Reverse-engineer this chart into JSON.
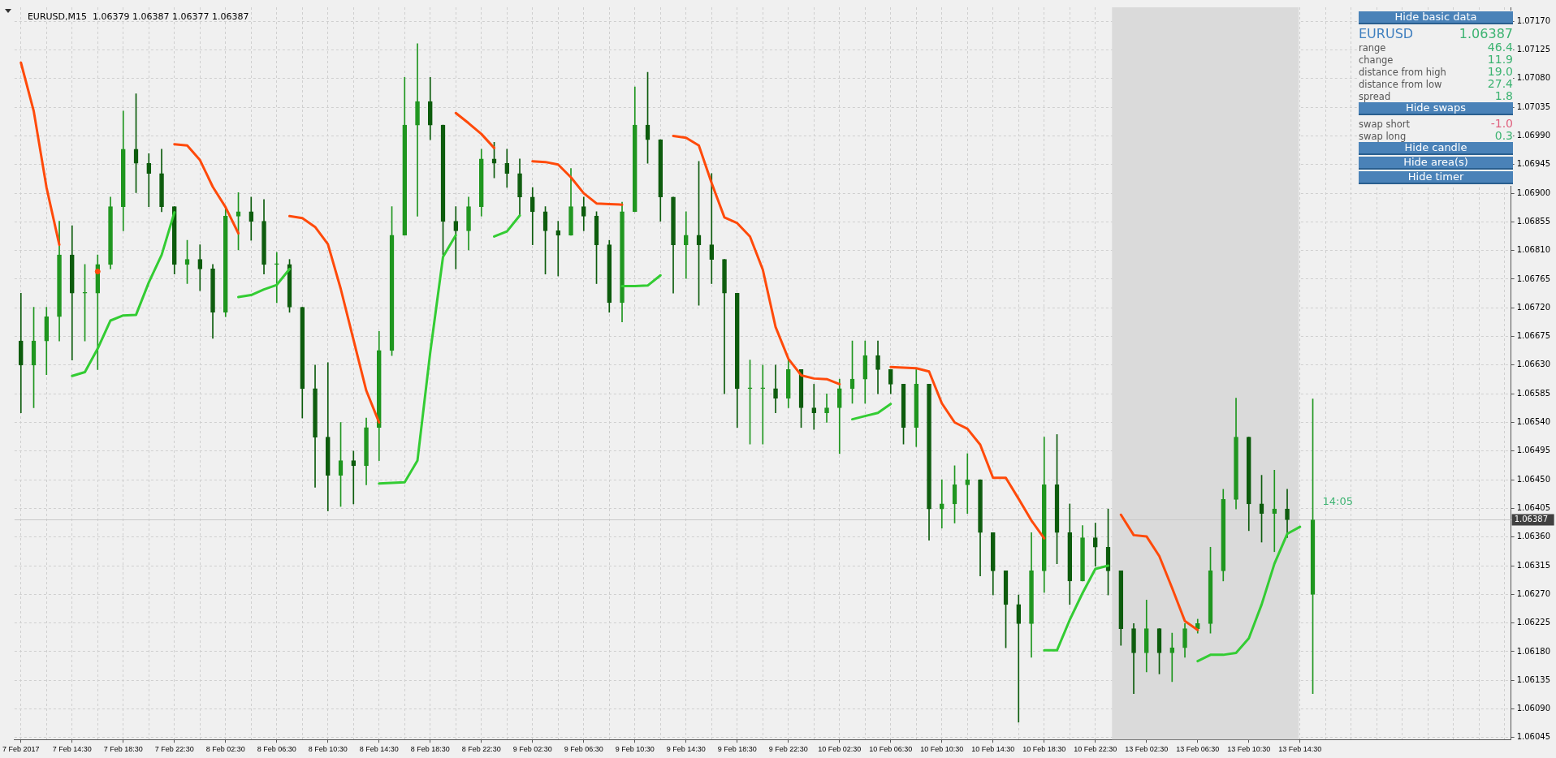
{
  "chart_data": {
    "type": "candlestick",
    "title": "EURUSD,M15  1.06379 1.06387 1.06377 1.06387",
    "colors": [
      "#0d5c0d",
      "#1f961f",
      "#1f961f",
      "#1f961f",
      "#0d5c0d",
      "#1f961f",
      "#1f961f",
      "#1f961f",
      "#1f961f",
      "#0d5c0d",
      "#0d5c0d",
      "#0d5c0d",
      "#0d5c0d",
      "#1f961f",
      "#0d5c0d",
      "#0d5c0d",
      "#1f961f",
      "#1f961f",
      "#0d5c0d",
      "#0d5c0d",
      "#1f961f",
      "#0d5c0d",
      "#0d5c0d",
      "#0d5c0d",
      "#0d5c0d",
      "#1f961f",
      "#0d5c0d",
      "#1f961f",
      "#1f961f",
      "#1f961f",
      "#1f961f",
      "#1f961f",
      "#0d5c0d",
      "#0d5c0d",
      "#0d5c0d",
      "#1f961f",
      "#1f961f",
      "#0d5c0d",
      "#0d5c0d",
      "#0d5c0d",
      "#0d5c0d",
      "#0d5c0d",
      "#0d5c0d",
      "#1f961f",
      "#0d5c0d",
      "#0d5c0d",
      "#0d5c0d",
      "#1f961f",
      "#1f961f",
      "#0d5c0d",
      "#0d5c0d",
      "#0d5c0d",
      "#1f961f",
      "#0d5c0d",
      "#0d5c0d",
      "#0d5c0d",
      "#0d5c0d",
      "#1f961f",
      "#1f961f",
      "#0d5c0d",
      "#1f961f",
      "#0d5c0d",
      "#0d5c0d",
      "#1f961f",
      "#1f961f",
      "#1f961f",
      "#1f961f",
      "#0d5c0d",
      "#0d5c0d",
      "#0d5c0d",
      "#1f961f",
      "#0d5c0d",
      "#1f961f",
      "#1f961f",
      "#1f961f",
      "#0d5c0d",
      "#0d5c0d",
      "#0d5c0d",
      "#0d5c0d",
      "#1f961f",
      "#1f961f",
      "#0d5c0d",
      "#0d5c0d",
      "#1f961f",
      "#0d5c0d",
      "#0d5c0d",
      "#0d5c0d",
      "#0d5c0d",
      "#1f961f",
      "#0d5c0d",
      "#1f961f",
      "#1f961f",
      "#1f961f",
      "#1f961f",
      "#1f961f",
      "#1f961f",
      "#0d5c0d",
      "#0d5c0d",
      "#1f961f",
      "#0d5c0d",
      null,
      "#1f961f",
      null,
      null,
      null,
      null,
      null,
      null,
      null,
      null,
      null,
      null,
      null,
      null,
      null,
      null,
      null
    ],
    "categories": [
      "7 Feb 2017",
      null,
      null,
      null,
      "7 Feb 14:30",
      null,
      null,
      null,
      "7 Feb 18:30",
      null,
      null,
      null,
      "7 Feb 22:30",
      null,
      null,
      null,
      "8 Feb 02:30",
      null,
      null,
      null,
      "8 Feb 06:30",
      null,
      null,
      null,
      "8 Feb 10:30",
      null,
      null,
      null,
      "8 Feb 14:30",
      null,
      null,
      null,
      "8 Feb 18:30",
      null,
      null,
      null,
      "8 Feb 22:30",
      null,
      null,
      null,
      "9 Feb 02:30",
      null,
      null,
      null,
      "9 Feb 06:30",
      null,
      null,
      null,
      "9 Feb 10:30",
      null,
      null,
      null,
      "9 Feb 14:30",
      null,
      null,
      null,
      "9 Feb 18:30",
      null,
      null,
      null,
      "9 Feb 22:30",
      null,
      null,
      null,
      "10 Feb 02:30",
      null,
      null,
      null,
      "10 Feb 06:30",
      null,
      null,
      null,
      "10 Feb 10:30",
      null,
      null,
      null,
      "10 Feb 14:30",
      null,
      null,
      null,
      "10 Feb 18:30",
      null,
      null,
      null,
      "10 Feb 22:30",
      null,
      null,
      null,
      "13 Feb 02:30",
      null,
      null,
      null,
      "13 Feb 06:30",
      null,
      null,
      null,
      "13 Feb 10:30",
      null,
      null,
      null,
      "13 Feb 14:30",
      null,
      null,
      null,
      null,
      null,
      null,
      null,
      null,
      null,
      null,
      null,
      null,
      null,
      null,
      null,
      null
    ],
    "ohlc": [
      [
        1.06668,
        1.06743,
        1.06555,
        1.0663
      ],
      [
        1.0663,
        1.06721,
        1.06563,
        1.06668
      ],
      [
        1.06668,
        1.06721,
        1.06615,
        1.06706
      ],
      [
        1.06706,
        1.06856,
        1.06668,
        1.06803
      ],
      [
        1.06803,
        1.06849,
        1.06638,
        1.06743
      ],
      [
        1.06743,
        1.06788,
        1.06668,
        1.06743
      ],
      [
        1.06743,
        1.06803,
        1.06623,
        1.06788
      ],
      [
        1.06788,
        1.06894,
        1.06781,
        1.06879
      ],
      [
        1.06879,
        1.07029,
        1.06841,
        1.06969
      ],
      [
        1.06969,
        1.07056,
        1.06901,
        1.06947
      ],
      [
        1.06947,
        1.06962,
        1.06879,
        1.06931
      ],
      [
        1.06931,
        1.06969,
        1.06871,
        1.06879
      ],
      [
        1.06879,
        1.06879,
        1.06773,
        1.06788
      ],
      [
        1.06788,
        1.06826,
        1.06758,
        1.06796
      ],
      [
        1.06796,
        1.06819,
        1.06747,
        1.06781
      ],
      [
        1.06781,
        1.06788,
        1.06672,
        1.06713
      ],
      [
        1.06713,
        1.06875,
        1.06706,
        1.06864
      ],
      [
        1.06864,
        1.06901,
        1.06811,
        1.06871
      ],
      [
        1.06871,
        1.06894,
        1.06826,
        1.06856
      ],
      [
        1.06856,
        1.0689,
        1.06773,
        1.06788
      ],
      [
        1.06788,
        1.06807,
        1.06728,
        1.06788
      ],
      [
        1.06788,
        1.06796,
        1.06713,
        1.06721
      ],
      [
        1.06721,
        1.06721,
        1.06547,
        1.06593
      ],
      [
        1.06593,
        1.0663,
        1.06438,
        1.06517
      ],
      [
        1.06517,
        1.06634,
        1.06401,
        1.06457
      ],
      [
        1.06457,
        1.0654,
        1.06408,
        1.0648
      ],
      [
        1.0648,
        1.06495,
        1.06412,
        1.06472
      ],
      [
        1.06472,
        1.06547,
        1.06442,
        1.06532
      ],
      [
        1.06532,
        1.06683,
        1.0648,
        1.06653
      ],
      [
        1.06653,
        1.06879,
        1.06645,
        1.06834
      ],
      [
        1.06834,
        1.07082,
        1.06834,
        1.07007
      ],
      [
        1.07007,
        1.07135,
        1.06864,
        1.07044
      ],
      [
        1.07044,
        1.07082,
        1.06984,
        1.07007
      ],
      [
        1.07007,
        1.07007,
        1.06803,
        1.06856
      ],
      [
        1.06856,
        1.06879,
        1.06781,
        1.06841
      ],
      [
        1.06841,
        1.06894,
        1.06811,
        1.06879
      ],
      [
        1.06879,
        1.06969,
        1.06864,
        1.06954
      ],
      [
        1.06954,
        1.0698,
        1.06924,
        1.06947
      ],
      [
        1.06947,
        1.06969,
        1.06909,
        1.06931
      ],
      [
        1.06931,
        1.06954,
        1.06864,
        1.06894
      ],
      [
        1.06894,
        1.06909,
        1.06819,
        1.06871
      ],
      [
        1.06871,
        1.06879,
        1.06773,
        1.06841
      ],
      [
        1.06841,
        1.06856,
        1.0677,
        1.06834
      ],
      [
        1.06834,
        1.06939,
        1.06834,
        1.06879
      ],
      [
        1.06879,
        1.06894,
        1.06841,
        1.06864
      ],
      [
        1.06864,
        1.06871,
        1.06758,
        1.06819
      ],
      [
        1.06819,
        1.06826,
        1.06713,
        1.06728
      ],
      [
        1.06728,
        1.06886,
        1.06698,
        1.06871
      ],
      [
        1.06871,
        1.07067,
        1.06871,
        1.07007
      ],
      [
        1.07007,
        1.0709,
        1.06947,
        1.06984
      ],
      [
        1.06984,
        1.06984,
        1.06856,
        1.06894
      ],
      [
        1.06894,
        1.06894,
        1.06743,
        1.06819
      ],
      [
        1.06819,
        1.06871,
        1.06766,
        1.06834
      ],
      [
        1.06834,
        1.0695,
        1.06724,
        1.06819
      ],
      [
        1.06819,
        1.06931,
        1.06758,
        1.06796
      ],
      [
        1.06796,
        1.06796,
        1.06585,
        1.06743
      ],
      [
        1.06743,
        1.06743,
        1.06532,
        1.06593
      ],
      [
        1.06593,
        1.06638,
        1.06506,
        1.06593
      ],
      [
        1.06593,
        1.0663,
        1.06506,
        1.06593
      ],
      [
        1.06593,
        1.0663,
        1.06555,
        1.06578
      ],
      [
        1.06578,
        1.06638,
        1.06563,
        1.06623
      ],
      [
        1.06623,
        1.06623,
        1.06532,
        1.06563
      ],
      [
        1.06563,
        1.066,
        1.06529,
        1.06555
      ],
      [
        1.06555,
        1.06585,
        1.0654,
        1.06563
      ],
      [
        1.06563,
        1.06608,
        1.06491,
        1.06593
      ],
      [
        1.06593,
        1.06668,
        1.0657,
        1.06608
      ],
      [
        1.06608,
        1.06668,
        1.0657,
        1.06645
      ],
      [
        1.06645,
        1.06668,
        1.06585,
        1.06623
      ],
      [
        1.06623,
        1.06623,
        1.06585,
        1.066
      ],
      [
        1.066,
        1.066,
        1.06506,
        1.06532
      ],
      [
        1.06532,
        1.06623,
        1.06502,
        1.066
      ],
      [
        1.066,
        1.066,
        1.06355,
        1.06404
      ],
      [
        1.06404,
        1.0645,
        1.06374,
        1.06412
      ],
      [
        1.06412,
        1.06472,
        1.06382,
        1.06442
      ],
      [
        1.06442,
        1.06491,
        1.06397,
        1.0645
      ],
      [
        1.0645,
        1.0645,
        1.06299,
        1.06367
      ],
      [
        1.06367,
        1.06367,
        1.06269,
        1.06307
      ],
      [
        1.06307,
        1.06307,
        1.06186,
        1.06254
      ],
      [
        1.06254,
        1.06269,
        1.06069,
        1.06224
      ],
      [
        1.06224,
        1.06367,
        1.06171,
        1.06307
      ],
      [
        1.06307,
        1.06517,
        1.06273,
        1.06442
      ],
      [
        1.06442,
        1.06521,
        1.06318,
        1.06367
      ],
      [
        1.06367,
        1.06412,
        1.06254,
        1.06291
      ],
      [
        1.06291,
        1.06378,
        1.06291,
        1.06359
      ],
      [
        1.06359,
        1.06382,
        1.06314,
        1.06344
      ],
      [
        1.06344,
        1.06404,
        1.06269,
        1.06307
      ],
      [
        1.06307,
        1.06307,
        1.0619,
        1.06216
      ],
      [
        1.06216,
        1.06224,
        1.06114,
        1.06178
      ],
      [
        1.06178,
        1.06261,
        1.06148,
        1.06216
      ],
      [
        1.06216,
        1.06216,
        1.06145,
        1.06178
      ],
      [
        1.06178,
        1.06209,
        1.06133,
        1.06186
      ],
      [
        1.06186,
        1.06224,
        1.06171,
        1.06216
      ],
      [
        1.06216,
        1.06231,
        1.06209,
        1.06224
      ],
      [
        1.06224,
        1.06344,
        1.06209,
        1.06307
      ],
      [
        1.06307,
        1.06435,
        1.06291,
        1.06419
      ],
      [
        1.06419,
        1.06578,
        1.06404,
        1.06517
      ],
      [
        1.06517,
        1.06517,
        1.0637,
        1.06412
      ],
      [
        1.06412,
        1.06457,
        1.06352,
        1.06397
      ],
      [
        1.06397,
        1.06465,
        1.06337,
        1.06404
      ],
      [
        1.06404,
        1.06435,
        1.06359,
        1.06387
      ],
      null,
      [
        1.0627,
        1.06577,
        1.06114,
        1.06387
      ],
      null,
      null,
      null,
      null,
      null,
      null,
      null,
      null,
      null,
      null,
      null,
      null,
      null,
      null,
      null
    ],
    "series": [
      {
        "type": "line",
        "color": "#ff4a0a",
        "values": [
          1.07105,
          1.07029,
          1.06909,
          1.06819,
          null,
          null,
          1.06777,
          null,
          null,
          null,
          null,
          null,
          1.06977,
          1.06975,
          1.06952,
          1.0691,
          1.06878,
          1.06837,
          null,
          null,
          null,
          1.06864,
          1.06861,
          1.06847,
          1.0682,
          1.0675,
          1.0667,
          1.0659,
          1.0654,
          null,
          null,
          null,
          null,
          null,
          1.07026,
          1.0701,
          1.06993,
          1.06971,
          null,
          null,
          1.0695,
          1.06949,
          1.06945,
          1.06925,
          1.069,
          1.06884,
          1.06883,
          1.06882,
          null,
          null,
          null,
          1.0699,
          1.06987,
          1.06975,
          1.06916,
          1.06862,
          1.06853,
          1.06832,
          1.0678,
          1.0669,
          1.0664,
          1.06614,
          1.06609,
          1.06608,
          1.066,
          null,
          null,
          null,
          1.06627,
          1.06626,
          1.06625,
          1.0662,
          1.0657,
          1.0654,
          1.0653,
          1.06505,
          1.06453,
          1.06453,
          1.0642,
          1.06386,
          1.06358,
          null,
          null,
          null,
          null,
          null,
          1.06395,
          1.06363,
          1.06361,
          1.0633,
          1.0628,
          1.06228,
          1.06214,
          null,
          null,
          null,
          null,
          null,
          null,
          null,
          null,
          null,
          null,
          null,
          null,
          null,
          null,
          null,
          null,
          null,
          null,
          null,
          null,
          null,
          null,
          null,
          null
        ]
      },
      {
        "type": "line",
        "color": "#33cc33",
        "values": [
          null,
          null,
          null,
          null,
          1.06613,
          1.06619,
          1.06656,
          1.067,
          1.06708,
          1.06709,
          1.0676,
          1.06803,
          1.0687,
          null,
          null,
          null,
          null,
          1.06737,
          1.0674,
          1.06749,
          1.06756,
          1.06781,
          null,
          null,
          null,
          null,
          null,
          null,
          1.06444,
          1.06445,
          1.06446,
          1.0648,
          1.0665,
          1.068,
          1.06834,
          null,
          null,
          1.06832,
          1.0684,
          1.06865,
          null,
          null,
          null,
          null,
          null,
          null,
          null,
          1.06754,
          1.06754,
          1.06755,
          1.06771,
          null,
          null,
          null,
          null,
          null,
          null,
          null,
          null,
          null,
          null,
          null,
          null,
          null,
          null,
          1.06545,
          1.0655,
          1.06555,
          1.06569,
          null,
          null,
          null,
          null,
          null,
          null,
          null,
          null,
          null,
          null,
          null,
          1.06182,
          1.06182,
          1.0623,
          1.06272,
          1.0631,
          1.06315,
          null,
          null,
          null,
          null,
          null,
          null,
          1.06165,
          1.06175,
          1.06175,
          1.06178,
          1.06201,
          1.06254,
          1.06318,
          1.06365,
          1.06376,
          null,
          null,
          null,
          null,
          null,
          null,
          null,
          null,
          null,
          null,
          null,
          null,
          null,
          null,
          null,
          null
        ]
      }
    ],
    "ylim": [
      1.06042,
      1.07192
    ],
    "yticks": [
      {
        "value": 1.06045,
        "label": "1.06045"
      },
      {
        "value": 1.0609,
        "label": "1.06090"
      },
      {
        "value": 1.06135,
        "label": "1.06135"
      },
      {
        "value": 1.0618,
        "label": "1.06180"
      },
      {
        "value": 1.06225,
        "label": "1.06225"
      },
      {
        "value": 1.0627,
        "label": "1.06270"
      },
      {
        "value": 1.06315,
        "label": "1.06315"
      },
      {
        "value": 1.0636,
        "label": "1.06360"
      },
      {
        "value": 1.06405,
        "label": "1.06405"
      },
      {
        "value": 1.0645,
        "label": "1.06450"
      },
      {
        "value": 1.06495,
        "label": "1.06495"
      },
      {
        "value": 1.0654,
        "label": "1.06540"
      },
      {
        "value": 1.06585,
        "label": "1.06585"
      },
      {
        "value": 1.0663,
        "label": "1.06630"
      },
      {
        "value": 1.06675,
        "label": "1.06675"
      },
      {
        "value": 1.0672,
        "label": "1.06720"
      },
      {
        "value": 1.06765,
        "label": "1.06765"
      },
      {
        "value": 1.0681,
        "label": "1.06810"
      },
      {
        "value": 1.06855,
        "label": "1.06855"
      },
      {
        "value": 1.069,
        "label": "1.06900"
      },
      {
        "value": 1.06945,
        "label": "1.06945"
      },
      {
        "value": 1.0699,
        "label": "1.06990"
      },
      {
        "value": 1.07035,
        "label": "1.07035"
      },
      {
        "value": 1.0708,
        "label": "1.07080"
      },
      {
        "value": 1.07125,
        "label": "1.07125"
      },
      {
        "value": 1.0717,
        "label": "1.07170"
      }
    ],
    "grid": true,
    "ref_lines": [
      {
        "axis": "y",
        "value": 1.06387,
        "label": "1.06387",
        "color": "#c8c8c8"
      }
    ],
    "annotations": [
      "Hide basic data",
      "EURUSD",
      "1.06387",
      "range",
      "46.4",
      "change",
      "11.9",
      "distance from high",
      "19.0",
      "distance from low",
      "27.4",
      "spread",
      "1.8",
      "Hide swaps",
      "swap short",
      "-1.0",
      "swap long",
      "0.3",
      "Hide candle",
      "Hide area(s)",
      "Hide timer",
      "14:05"
    ]
  }
}
